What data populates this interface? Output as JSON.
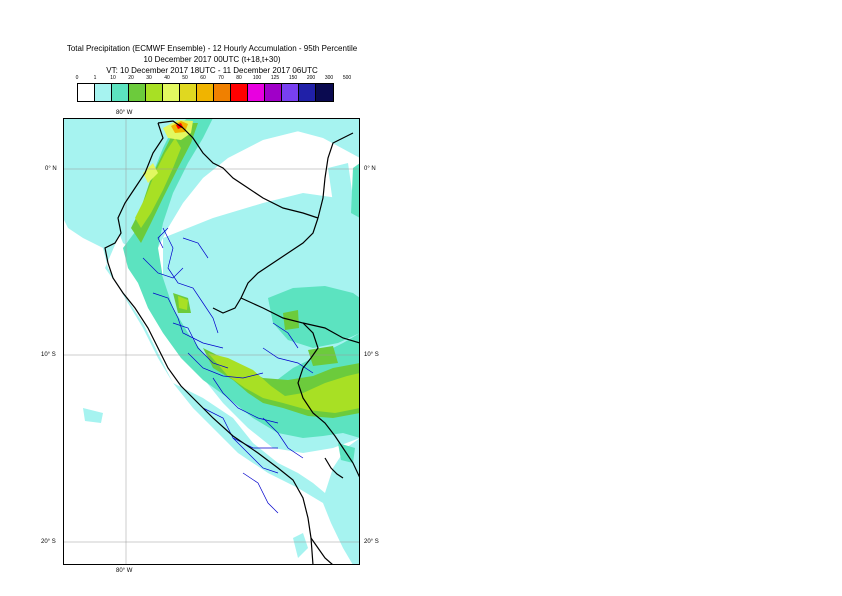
{
  "title": {
    "line1": "Total Precipitation (ECMWF Ensemble) - 12 Hourly Accumulation - 95th Percentile",
    "line2": "10 December 2017 00UTC (t+18,t+30)",
    "line3": "VT: 10 December 2017 18UTC - 11 December 2017 06UTC"
  },
  "legend": {
    "labels": [
      "0",
      "1",
      "10",
      "20",
      "30",
      "40",
      "50",
      "60",
      "70",
      "80",
      "100",
      "125",
      "150",
      "200",
      "300",
      "500"
    ],
    "colors": [
      "#ffffff",
      "#a6f3f0",
      "#5ce3c0",
      "#6ccb3c",
      "#a8e024",
      "#e2f860",
      "#e0d820",
      "#f0b400",
      "#f08000",
      "#ff0000",
      "#e800e0",
      "#a000c8",
      "#7840f0",
      "#2020a8",
      "#0a0a50"
    ]
  },
  "axes": {
    "lon_top": "80° W",
    "lon_bottom": "80° W",
    "lat_left": [
      "0° N",
      "10° S",
      "20° S"
    ],
    "lat_right": [
      "0° N",
      "10° S",
      "20° S"
    ]
  },
  "map_colors": {
    "light": "#a6f3f0",
    "teal": "#5ce3c0",
    "green": "#6ccb3c",
    "lime": "#a8e024",
    "yellow": "#e2f860",
    "orange": "#f0b400",
    "red": "#ff0000",
    "coast": "#000000",
    "departments": "#0000cc",
    "grid": "#999999"
  }
}
